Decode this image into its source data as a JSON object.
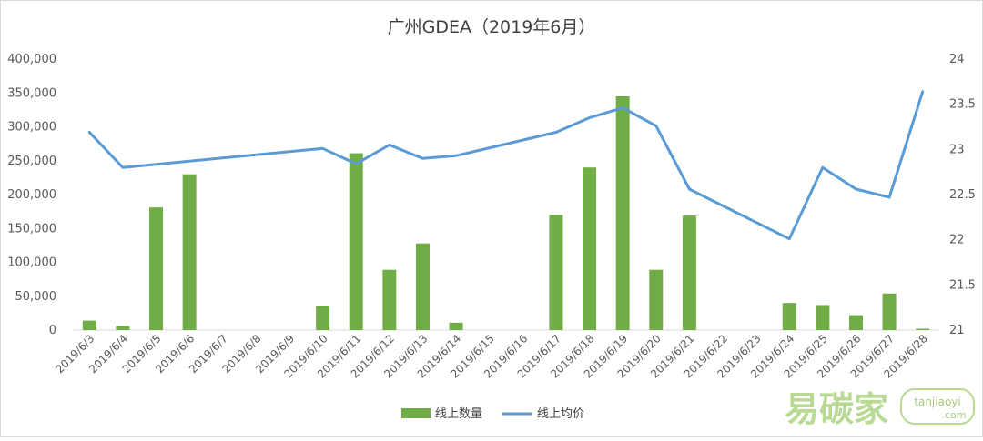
{
  "chart_data": {
    "type": "bar+line",
    "title": "广州GDEA（2019年6月）",
    "categories": [
      "2019/6/3",
      "2019/6/4",
      "2019/6/5",
      "2019/6/6",
      "2019/6/7",
      "2019/6/8",
      "2019/6/9",
      "2019/6/10",
      "2019/6/11",
      "2019/6/12",
      "2019/6/13",
      "2019/6/14",
      "2019/6/15",
      "2019/6/16",
      "2019/6/17",
      "2019/6/18",
      "2019/6/19",
      "2019/6/20",
      "2019/6/21",
      "2019/6/22",
      "2019/6/23",
      "2019/6/24",
      "2019/6/25",
      "2019/6/26",
      "2019/6/27",
      "2019/6/28"
    ],
    "series": [
      {
        "name": "线上数量",
        "type": "bar",
        "axis": "left",
        "color": "#70AD47",
        "values": [
          14000,
          6000,
          181000,
          230000,
          0,
          0,
          0,
          36000,
          261000,
          89000,
          128000,
          11000,
          0,
          0,
          170000,
          240000,
          345000,
          89000,
          169000,
          0,
          0,
          40000,
          37000,
          22000,
          54000,
          2000
        ]
      },
      {
        "name": "线上均价",
        "type": "line",
        "axis": "right",
        "color": "#5B9BD5",
        "values": [
          23.19,
          22.8,
          null,
          null,
          null,
          null,
          null,
          23.01,
          22.84,
          23.05,
          22.9,
          22.93,
          null,
          null,
          23.19,
          23.35,
          23.46,
          23.26,
          22.56,
          null,
          null,
          22.01,
          22.8,
          22.56,
          22.47,
          23.64
        ]
      }
    ],
    "y_left": {
      "min": 0,
      "max": 400000,
      "ticks": [
        "0",
        "50,000",
        "100,000",
        "150,000",
        "200,000",
        "250,000",
        "300,000",
        "350,000",
        "400,000"
      ]
    },
    "y_right": {
      "min": 21,
      "max": 24,
      "ticks": [
        "21",
        "21.5",
        "22",
        "22.5",
        "23",
        "23.5",
        "24"
      ]
    },
    "legend": "bottom",
    "grid": false
  },
  "watermark": {
    "text_cn": "易碳家",
    "text_en": "tanjiaoyi",
    "text_domain": ".com"
  }
}
